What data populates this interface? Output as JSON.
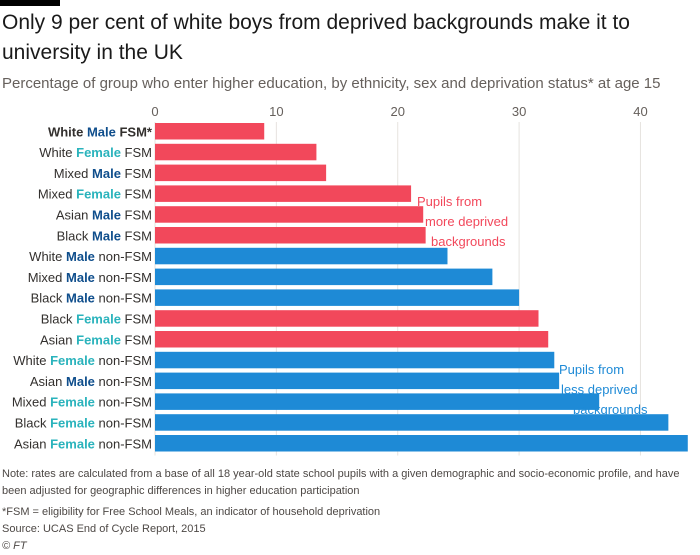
{
  "header": {
    "title": "Only 9 per cent of white boys from deprived backgrounds make it to university in the UK",
    "subtitle": "Percentage of group who enter higher education, by ethnicity, sex and deprivation status* at age 15"
  },
  "colors": {
    "fsm": "#f2485b",
    "non_fsm": "#1e8ad6",
    "male_word": "#0f4e8c",
    "female_word": "#2ab3bc",
    "grid": "#e6e3df",
    "tick_text": "#66605c",
    "label_text": "#33302e"
  },
  "chart_data": {
    "type": "bar",
    "orientation": "horizontal",
    "xlim": [
      0,
      44
    ],
    "xticks": [
      0,
      10,
      20,
      30,
      40
    ],
    "grid": true,
    "bars": [
      {
        "ethnicity": "White",
        "sex": "Male",
        "status": "FSM*",
        "group": "fsm",
        "value": 9.0,
        "bold": true
      },
      {
        "ethnicity": "White",
        "sex": "Female",
        "status": "FSM",
        "group": "fsm",
        "value": 13.3
      },
      {
        "ethnicity": "Mixed",
        "sex": "Male",
        "status": "FSM",
        "group": "fsm",
        "value": 14.1
      },
      {
        "ethnicity": "Mixed",
        "sex": "Female",
        "status": "FSM",
        "group": "fsm",
        "value": 21.1
      },
      {
        "ethnicity": "Asian",
        "sex": "Male",
        "status": "FSM",
        "group": "fsm",
        "value": 22.1
      },
      {
        "ethnicity": "Black",
        "sex": "Male",
        "status": "FSM",
        "group": "fsm",
        "value": 22.3
      },
      {
        "ethnicity": "White",
        "sex": "Male",
        "status": "non-FSM",
        "group": "non_fsm",
        "value": 24.1
      },
      {
        "ethnicity": "Mixed",
        "sex": "Male",
        "status": "non-FSM",
        "group": "non_fsm",
        "value": 27.8
      },
      {
        "ethnicity": "Black",
        "sex": "Male",
        "status": "non-FSM",
        "group": "non_fsm",
        "value": 30.0
      },
      {
        "ethnicity": "Black",
        "sex": "Female",
        "status": "FSM",
        "group": "fsm",
        "value": 31.6
      },
      {
        "ethnicity": "Asian",
        "sex": "Female",
        "status": "FSM",
        "group": "fsm",
        "value": 32.4
      },
      {
        "ethnicity": "White",
        "sex": "Female",
        "status": "non-FSM",
        "group": "non_fsm",
        "value": 32.9
      },
      {
        "ethnicity": "Asian",
        "sex": "Male",
        "status": "non-FSM",
        "group": "non_fsm",
        "value": 33.3
      },
      {
        "ethnicity": "Mixed",
        "sex": "Female",
        "status": "non-FSM",
        "group": "non_fsm",
        "value": 36.6
      },
      {
        "ethnicity": "Black",
        "sex": "Female",
        "status": "non-FSM",
        "group": "non_fsm",
        "value": 42.3
      },
      {
        "ethnicity": "Asian",
        "sex": "Female",
        "status": "non-FSM",
        "group": "non_fsm",
        "value": 43.9
      }
    ],
    "annotations": [
      {
        "group": "fsm",
        "lines": [
          "Pupils from",
          "more deprived",
          "backgrounds"
        ]
      },
      {
        "group": "non_fsm",
        "lines": [
          "Pupils from",
          "less deprived",
          "backgrounds"
        ]
      }
    ]
  },
  "footer": {
    "note": "Note: rates are calculated from a base of all 18 year-old state school pupils with a given demographic and socio-economic profile, and have been adjusted for geographic differences in higher education participation",
    "fsm_note": "*FSM = eligibility for Free School Meals, an indicator of household deprivation",
    "source": "Source: UCAS End of Cycle Report, 2015",
    "credit": "© FT"
  }
}
